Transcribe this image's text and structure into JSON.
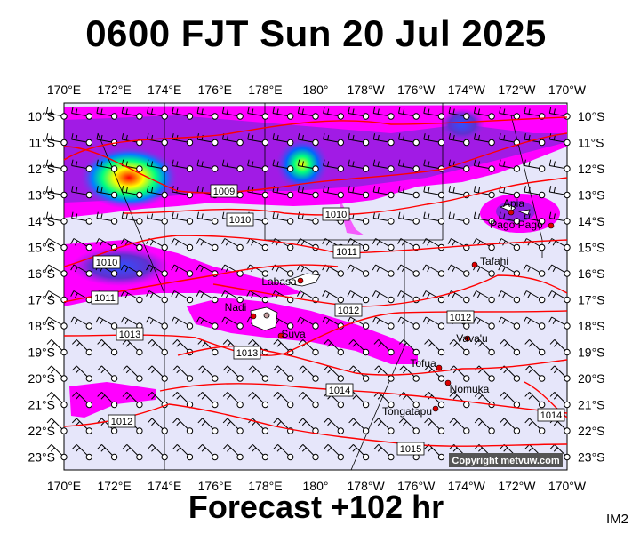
{
  "header": {
    "title": "0600 FJT Sun 20 Jul 2025"
  },
  "footer": {
    "forecast": "Forecast +102 hr",
    "panel_id": "IM2",
    "copyright": "Copyright metvuw.com"
  },
  "axes": {
    "lon_labels": [
      "170°E",
      "172°E",
      "174°E",
      "176°E",
      "178°E",
      "180°",
      "178°W",
      "176°W",
      "174°W",
      "172°W",
      "170°W"
    ],
    "lat_labels": [
      "10°S",
      "11°S",
      "12°S",
      "13°S",
      "14°S",
      "15°S",
      "16°S",
      "17°S",
      "18°S",
      "19°S",
      "20°S",
      "21°S",
      "22°S",
      "23°S"
    ]
  },
  "isobars": [
    "1009",
    "1010",
    "1010",
    "1011",
    "1010",
    "1011",
    "1012",
    "1012",
    "1013",
    "1013",
    "1014",
    "1012",
    "1015",
    "1014"
  ],
  "places": [
    "Apia",
    "Pago Pago",
    "Tafahi",
    "Labasa",
    "Nadi",
    "Suva",
    "Vava'u",
    "Tofua",
    "Nomuka",
    "Tongatapu"
  ],
  "colors": {
    "land_bg": "#e6e6fa",
    "rain_light": "#ff00ff",
    "rain_mid": "#8a2be2",
    "rain_heavy": "#0000ff",
    "rain_core": "#ff0000",
    "isobar": "#ff0000"
  }
}
